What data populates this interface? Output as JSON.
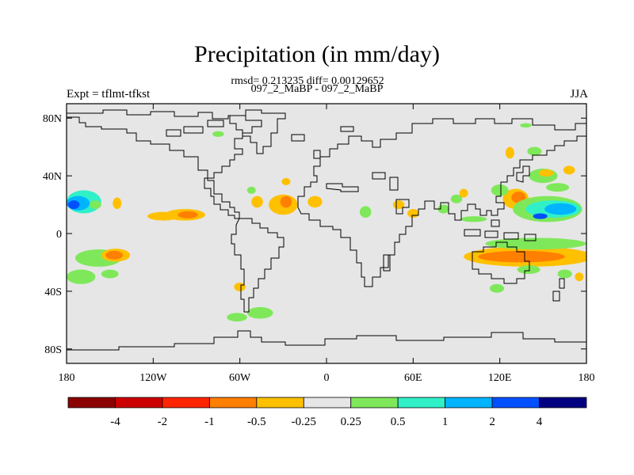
{
  "header": {
    "title": "Precipitation (in mm/day)",
    "stats": "rmsd= 0.213235 diff= 0.00129652",
    "runs": "097_2_MaBP - 097_2_MaBP",
    "experiment": "Expt = tflmt-tfkst",
    "season": "JJA"
  },
  "map": {
    "lat_range": [
      -90,
      90
    ],
    "lon_range": [
      -180,
      180
    ],
    "background_color": "#e6e6e6",
    "y_ticks": [
      {
        "value": 80,
        "label": "80N"
      },
      {
        "value": 40,
        "label": "40N"
      },
      {
        "value": 0,
        "label": "0"
      },
      {
        "value": -40,
        "label": "40S"
      },
      {
        "value": -80,
        "label": "80S"
      }
    ],
    "x_ticks": [
      {
        "value": -180,
        "label": "180"
      },
      {
        "value": -120,
        "label": "120W"
      },
      {
        "value": -60,
        "label": "60W"
      },
      {
        "value": 0,
        "label": "0"
      },
      {
        "value": 60,
        "label": "60E"
      },
      {
        "value": 120,
        "label": "120E"
      },
      {
        "value": 180,
        "label": "180"
      }
    ],
    "anomalies": [
      {
        "lon": -168,
        "lat": 22,
        "w": 24,
        "h": 16,
        "level": 0.5
      },
      {
        "lon": -172,
        "lat": 21,
        "w": 16,
        "h": 10,
        "level": 1
      },
      {
        "lon": -175,
        "lat": 20,
        "w": 8,
        "h": 6,
        "level": 2
      },
      {
        "lon": -160,
        "lat": 20,
        "w": 8,
        "h": 6,
        "level": 0.25
      },
      {
        "lon": -145,
        "lat": 21,
        "w": 6,
        "h": 8,
        "level": -0.25
      },
      {
        "lon": -158,
        "lat": -17,
        "w": 32,
        "h": 12,
        "level": 0.25
      },
      {
        "lon": -146,
        "lat": -15,
        "w": 20,
        "h": 9,
        "level": -0.25
      },
      {
        "lon": -147,
        "lat": -15,
        "w": 12,
        "h": 6,
        "level": -0.5
      },
      {
        "lon": -170,
        "lat": -30,
        "w": 20,
        "h": 10,
        "level": 0.25
      },
      {
        "lon": -150,
        "lat": -28,
        "w": 12,
        "h": 6,
        "level": 0.25
      },
      {
        "lon": -113,
        "lat": 12,
        "w": 22,
        "h": 6,
        "level": -0.25
      },
      {
        "lon": -98,
        "lat": 13,
        "w": 28,
        "h": 8,
        "level": -0.25
      },
      {
        "lon": -96,
        "lat": 13,
        "w": 14,
        "h": 5,
        "level": -0.5
      },
      {
        "lon": -30,
        "lat": 20,
        "w": 20,
        "h": 14,
        "level": -0.25
      },
      {
        "lon": -28,
        "lat": 22,
        "w": 8,
        "h": 8,
        "level": -0.5
      },
      {
        "lon": -48,
        "lat": 22,
        "w": 8,
        "h": 8,
        "level": -0.25
      },
      {
        "lon": -8,
        "lat": 22,
        "w": 10,
        "h": 8,
        "level": -0.25
      },
      {
        "lon": -52,
        "lat": 30,
        "w": 6,
        "h": 5,
        "level": 0.25
      },
      {
        "lon": -28,
        "lat": 36,
        "w": 6,
        "h": 5,
        "level": -0.25
      },
      {
        "lon": -60,
        "lat": -37,
        "w": 8,
        "h": 6,
        "level": -0.25
      },
      {
        "lon": -46,
        "lat": -55,
        "w": 18,
        "h": 8,
        "level": 0.25
      },
      {
        "lon": -62,
        "lat": -58,
        "w": 14,
        "h": 6,
        "level": 0.25
      },
      {
        "lon": 27,
        "lat": 15,
        "w": 8,
        "h": 8,
        "level": 0.25
      },
      {
        "lon": 50,
        "lat": 20,
        "w": 8,
        "h": 6,
        "level": -0.25
      },
      {
        "lon": 60,
        "lat": 14,
        "w": 8,
        "h": 6,
        "level": -0.25
      },
      {
        "lon": 81,
        "lat": 17,
        "w": 8,
        "h": 6,
        "level": 0.25
      },
      {
        "lon": 90,
        "lat": 24,
        "w": 8,
        "h": 6,
        "level": 0.25
      },
      {
        "lon": 102,
        "lat": 10,
        "w": 18,
        "h": 4,
        "level": 0.25
      },
      {
        "lon": 95,
        "lat": 28,
        "w": 6,
        "h": 6,
        "level": -0.25
      },
      {
        "lon": 131,
        "lat": 24,
        "w": 18,
        "h": 14,
        "level": -0.25
      },
      {
        "lon": 133,
        "lat": 25,
        "w": 10,
        "h": 8,
        "level": -0.5
      },
      {
        "lon": 153,
        "lat": 17,
        "w": 48,
        "h": 18,
        "level": 0.25
      },
      {
        "lon": 157,
        "lat": 17,
        "w": 38,
        "h": 12,
        "level": 0.5
      },
      {
        "lon": 162,
        "lat": 17,
        "w": 22,
        "h": 8,
        "level": 1
      },
      {
        "lon": 148,
        "lat": 12,
        "w": 10,
        "h": 4,
        "level": 2
      },
      {
        "lon": 120,
        "lat": 30,
        "w": 12,
        "h": 8,
        "level": 0.25
      },
      {
        "lon": 150,
        "lat": 40,
        "w": 20,
        "h": 10,
        "level": 0.25
      },
      {
        "lon": 152,
        "lat": 42,
        "w": 10,
        "h": 5,
        "level": -0.25
      },
      {
        "lon": 168,
        "lat": 44,
        "w": 8,
        "h": 6,
        "level": -0.25
      },
      {
        "lon": 160,
        "lat": 32,
        "w": 16,
        "h": 6,
        "level": 0.25
      },
      {
        "lon": 144,
        "lat": 57,
        "w": 10,
        "h": 6,
        "level": 0.25
      },
      {
        "lon": 127,
        "lat": 56,
        "w": 6,
        "h": 8,
        "level": -0.25
      },
      {
        "lon": 140,
        "lat": -16,
        "w": 90,
        "h": 14,
        "level": -0.25
      },
      {
        "lon": 135,
        "lat": -16,
        "w": 60,
        "h": 8,
        "level": -0.5
      },
      {
        "lon": 145,
        "lat": -7,
        "w": 70,
        "h": 8,
        "level": 0.25
      },
      {
        "lon": 140,
        "lat": -25,
        "w": 16,
        "h": 6,
        "level": 0.25
      },
      {
        "lon": 165,
        "lat": -28,
        "w": 10,
        "h": 6,
        "level": 0.25
      },
      {
        "lon": 175,
        "lat": -30,
        "w": 6,
        "h": 6,
        "level": -0.25
      },
      {
        "lon": 118,
        "lat": -38,
        "w": 10,
        "h": 6,
        "level": 0.25
      },
      {
        "lon": -75,
        "lat": 69,
        "w": 8,
        "h": 4,
        "level": 0.25
      },
      {
        "lon": 138,
        "lat": 75,
        "w": 8,
        "h": 3,
        "level": 0.25
      }
    ]
  },
  "colorbar": {
    "colors": [
      "#8b0000",
      "#cc0000",
      "#ff2400",
      "#ff7f00",
      "#ffc000",
      "#e6e6e6",
      "#7fe85a",
      "#30f0c8",
      "#00b4ff",
      "#0050ff",
      "#000080"
    ],
    "labels": [
      "-4",
      "-2",
      "-1",
      "-0.5",
      "-0.25",
      "0.25",
      "0.5",
      "1",
      "2",
      "4"
    ]
  },
  "palette": {
    "-4": "#8b0000",
    "-2": "#cc0000",
    "-1": "#ff2400",
    "-0.5": "#ff7f00",
    "-0.25": "#ffc000",
    "0.25": "#7fe85a",
    "0.5": "#30f0c8",
    "1": "#00b4ff",
    "2": "#0050ff",
    "4": "#000080"
  }
}
